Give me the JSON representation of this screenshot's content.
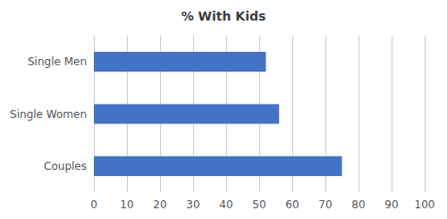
{
  "chart_data": {
    "type": "bar",
    "orientation": "horizontal",
    "title": "% With Kids",
    "categories": [
      "Couples",
      "Single Women",
      "Single Men"
    ],
    "values": [
      75,
      56,
      52
    ],
    "color": "#4472C4",
    "xlim": [
      0,
      100
    ],
    "xticks": [
      0,
      10,
      20,
      30,
      40,
      50,
      60,
      70,
      80,
      90,
      100
    ],
    "grid": true
  }
}
